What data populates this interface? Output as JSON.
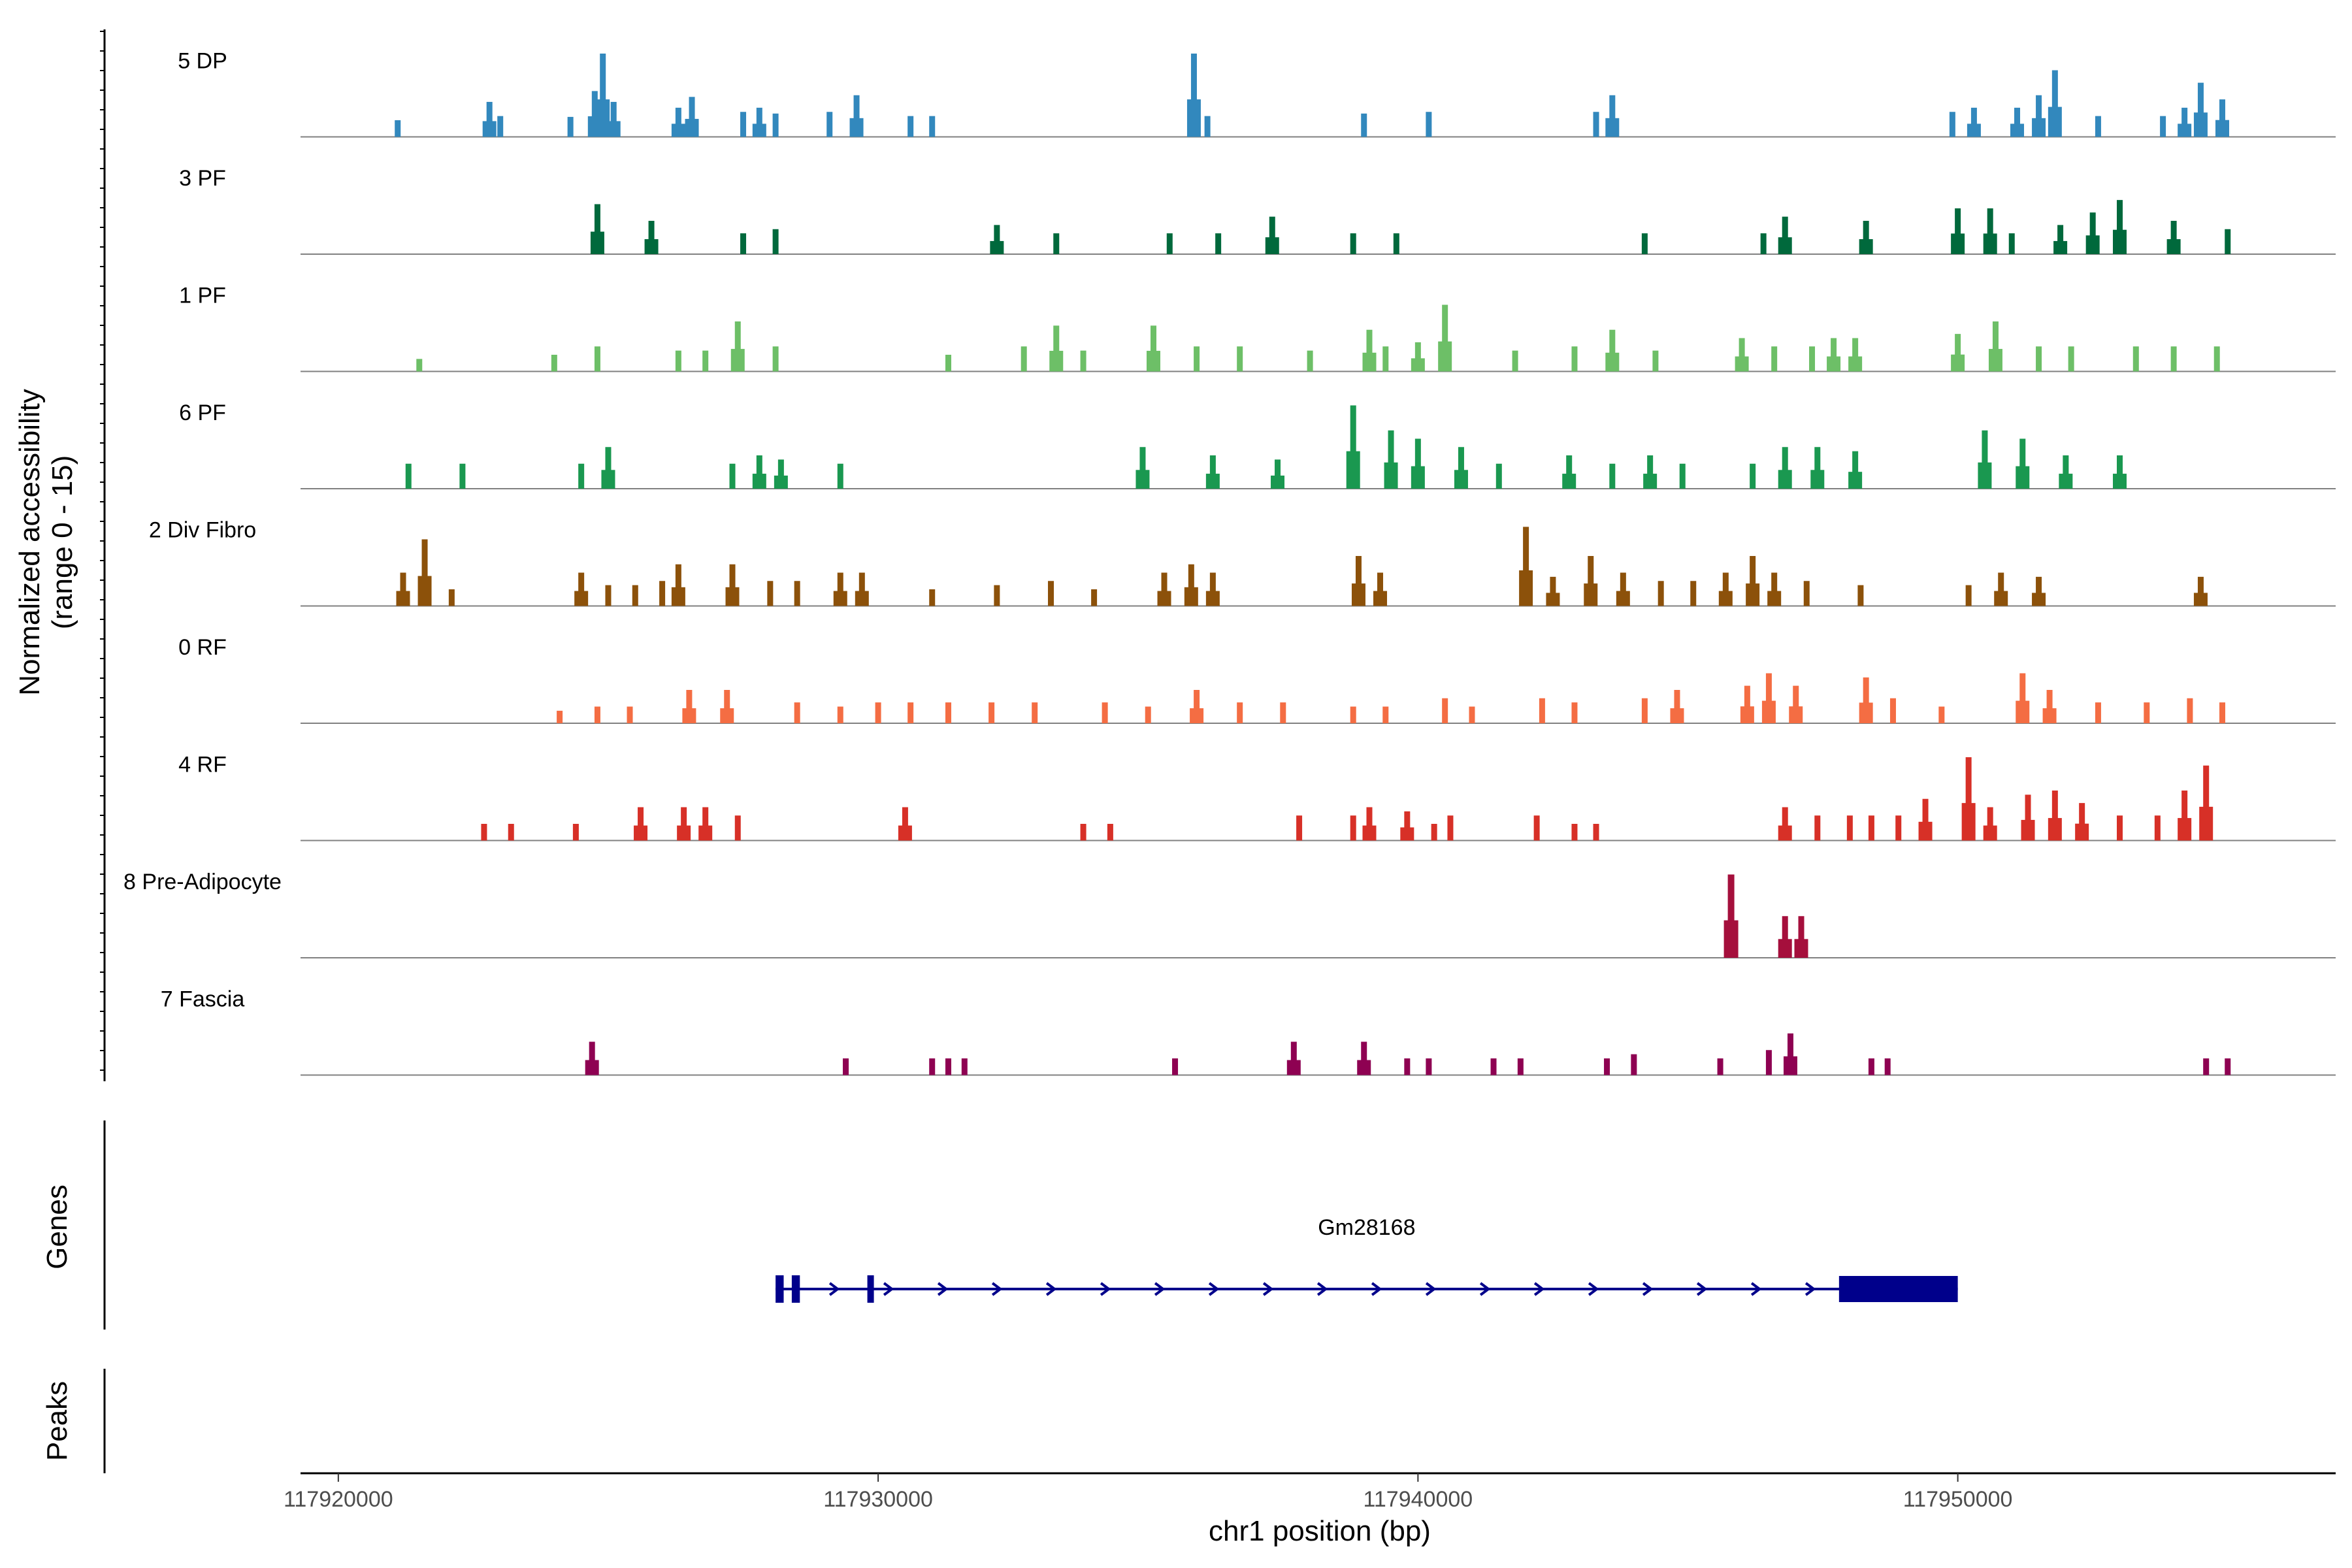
{
  "chart_data": {
    "type": "coverage",
    "ylabel_line1": "Normalized accessibility",
    "ylabel_line2": "(range 0 - 15)",
    "xlabel": "chr1 position (bp)",
    "xlim": [
      117919300,
      117957000
    ],
    "xticks": [
      {
        "value": 117920000,
        "label": "117920000"
      },
      {
        "value": 117930000,
        "label": "117930000"
      },
      {
        "value": 117940000,
        "label": "117940000"
      },
      {
        "value": 117950000,
        "label": "117950000"
      }
    ],
    "tracks": [
      {
        "label": "5 DP",
        "color": "#3288bd",
        "peaks": [
          [
            117921100,
            0.2
          ],
          [
            117922800,
            0.42
          ],
          [
            117923000,
            0.25
          ],
          [
            117924300,
            0.24
          ],
          [
            117924750,
            0.55
          ],
          [
            117924900,
            1.0
          ],
          [
            117925100,
            0.42
          ],
          [
            117926300,
            0.35
          ],
          [
            117926550,
            0.48
          ],
          [
            117927500,
            0.3
          ],
          [
            117927800,
            0.35
          ],
          [
            117928100,
            0.28
          ],
          [
            117929100,
            0.3
          ],
          [
            117929600,
            0.5
          ],
          [
            117930600,
            0.25
          ],
          [
            117931000,
            0.25
          ],
          [
            117935850,
            1.0
          ],
          [
            117936100,
            0.25
          ],
          [
            117939000,
            0.28
          ],
          [
            117940200,
            0.3
          ],
          [
            117943300,
            0.3
          ],
          [
            117943600,
            0.5
          ],
          [
            117949900,
            0.3
          ],
          [
            117950300,
            0.35
          ],
          [
            117951100,
            0.35
          ],
          [
            117951500,
            0.5
          ],
          [
            117951800,
            0.8
          ],
          [
            117952600,
            0.25
          ],
          [
            117953800,
            0.25
          ],
          [
            117954200,
            0.35
          ],
          [
            117954500,
            0.65
          ],
          [
            117954900,
            0.45
          ]
        ]
      },
      {
        "label": "3 PF",
        "color": "#00693c",
        "peaks": [
          [
            117924800,
            0.6
          ],
          [
            117925800,
            0.4
          ],
          [
            117927500,
            0.25
          ],
          [
            117928100,
            0.3
          ],
          [
            117932200,
            0.35
          ],
          [
            117933300,
            0.25
          ],
          [
            117935400,
            0.25
          ],
          [
            117936300,
            0.25
          ],
          [
            117937300,
            0.45
          ],
          [
            117938800,
            0.25
          ],
          [
            117939600,
            0.25
          ],
          [
            117944200,
            0.25
          ],
          [
            117946400,
            0.25
          ],
          [
            117946800,
            0.45
          ],
          [
            117948300,
            0.4
          ],
          [
            117950000,
            0.55
          ],
          [
            117950600,
            0.55
          ],
          [
            117951000,
            0.25
          ],
          [
            117951900,
            0.35
          ],
          [
            117952500,
            0.5
          ],
          [
            117953000,
            0.65
          ],
          [
            117954000,
            0.4
          ],
          [
            117955000,
            0.3
          ]
        ]
      },
      {
        "label": "1 PF",
        "color": "#6dbf67",
        "peaks": [
          [
            117921500,
            0.15
          ],
          [
            117924000,
            0.2
          ],
          [
            117924800,
            0.3
          ],
          [
            117926300,
            0.25
          ],
          [
            117926800,
            0.25
          ],
          [
            117927400,
            0.6
          ],
          [
            117928100,
            0.3
          ],
          [
            117931300,
            0.2
          ],
          [
            117932700,
            0.3
          ],
          [
            117933300,
            0.55
          ],
          [
            117933800,
            0.25
          ],
          [
            117935100,
            0.55
          ],
          [
            117935900,
            0.3
          ],
          [
            117936700,
            0.3
          ],
          [
            117938000,
            0.25
          ],
          [
            117939100,
            0.5
          ],
          [
            117939400,
            0.3
          ],
          [
            117940000,
            0.35
          ],
          [
            117940500,
            0.8
          ],
          [
            117941800,
            0.25
          ],
          [
            117942900,
            0.3
          ],
          [
            117943600,
            0.5
          ],
          [
            117944400,
            0.25
          ],
          [
            117946000,
            0.4
          ],
          [
            117946600,
            0.3
          ],
          [
            117947300,
            0.3
          ],
          [
            117947700,
            0.4
          ],
          [
            117948100,
            0.4
          ],
          [
            117950000,
            0.45
          ],
          [
            117950700,
            0.6
          ],
          [
            117951500,
            0.3
          ],
          [
            117952100,
            0.3
          ],
          [
            117953300,
            0.3
          ],
          [
            117954000,
            0.3
          ],
          [
            117954800,
            0.3
          ]
        ]
      },
      {
        "label": "6 PF",
        "color": "#1a9850",
        "peaks": [
          [
            117921300,
            0.3
          ],
          [
            117922300,
            0.3
          ],
          [
            117924500,
            0.3
          ],
          [
            117925000,
            0.5
          ],
          [
            117927300,
            0.3
          ],
          [
            117927800,
            0.4
          ],
          [
            117928200,
            0.35
          ],
          [
            117929300,
            0.3
          ],
          [
            117934900,
            0.5
          ],
          [
            117936200,
            0.4
          ],
          [
            117937400,
            0.35
          ],
          [
            117938800,
            1.0
          ],
          [
            117939500,
            0.7
          ],
          [
            117940000,
            0.6
          ],
          [
            117940800,
            0.5
          ],
          [
            117941500,
            0.3
          ],
          [
            117942800,
            0.4
          ],
          [
            117943600,
            0.3
          ],
          [
            117944300,
            0.4
          ],
          [
            117944900,
            0.3
          ],
          [
            117946200,
            0.3
          ],
          [
            117946800,
            0.5
          ],
          [
            117947400,
            0.5
          ],
          [
            117948100,
            0.45
          ],
          [
            117950500,
            0.7
          ],
          [
            117951200,
            0.6
          ],
          [
            117952000,
            0.4
          ],
          [
            117953000,
            0.4
          ]
        ]
      },
      {
        "label": "2 Div Fibro",
        "color": "#8c510a",
        "peaks": [
          [
            117921200,
            0.4
          ],
          [
            117921600,
            0.8
          ],
          [
            117922100,
            0.2
          ],
          [
            117924500,
            0.4
          ],
          [
            117925000,
            0.25
          ],
          [
            117925500,
            0.25
          ],
          [
            117926000,
            0.3
          ],
          [
            117926300,
            0.5
          ],
          [
            117927300,
            0.5
          ],
          [
            117928000,
            0.3
          ],
          [
            117928500,
            0.3
          ],
          [
            117929300,
            0.4
          ],
          [
            117929700,
            0.4
          ],
          [
            117931000,
            0.2
          ],
          [
            117932200,
            0.25
          ],
          [
            117933200,
            0.3
          ],
          [
            117934000,
            0.2
          ],
          [
            117935300,
            0.4
          ],
          [
            117935800,
            0.5
          ],
          [
            117936200,
            0.4
          ],
          [
            117938900,
            0.6
          ],
          [
            117939300,
            0.4
          ],
          [
            117942000,
            0.95
          ],
          [
            117942500,
            0.35
          ],
          [
            117943200,
            0.6
          ],
          [
            117943800,
            0.4
          ],
          [
            117944500,
            0.3
          ],
          [
            117945100,
            0.3
          ],
          [
            117945700,
            0.4
          ],
          [
            117946200,
            0.6
          ],
          [
            117946600,
            0.4
          ],
          [
            117947200,
            0.3
          ],
          [
            117948200,
            0.25
          ],
          [
            117950200,
            0.25
          ],
          [
            117950800,
            0.4
          ],
          [
            117951500,
            0.35
          ],
          [
            117954500,
            0.35
          ]
        ]
      },
      {
        "label": "0 RF",
        "color": "#f46d43",
        "peaks": [
          [
            117924100,
            0.15
          ],
          [
            117924800,
            0.2
          ],
          [
            117925400,
            0.2
          ],
          [
            117926500,
            0.4
          ],
          [
            117927200,
            0.4
          ],
          [
            117928500,
            0.25
          ],
          [
            117929300,
            0.2
          ],
          [
            117930000,
            0.25
          ],
          [
            117930600,
            0.25
          ],
          [
            117931300,
            0.25
          ],
          [
            117932100,
            0.25
          ],
          [
            117932900,
            0.25
          ],
          [
            117934200,
            0.25
          ],
          [
            117935000,
            0.2
          ],
          [
            117935900,
            0.4
          ],
          [
            117936700,
            0.25
          ],
          [
            117937500,
            0.25
          ],
          [
            117938800,
            0.2
          ],
          [
            117939400,
            0.2
          ],
          [
            117940500,
            0.3
          ],
          [
            117941000,
            0.2
          ],
          [
            117942300,
            0.3
          ],
          [
            117942900,
            0.25
          ],
          [
            117944200,
            0.3
          ],
          [
            117944800,
            0.4
          ],
          [
            117946100,
            0.45
          ],
          [
            117946500,
            0.6
          ],
          [
            117947000,
            0.45
          ],
          [
            117948300,
            0.55
          ],
          [
            117948800,
            0.3
          ],
          [
            117949700,
            0.2
          ],
          [
            117951200,
            0.6
          ],
          [
            117951700,
            0.4
          ],
          [
            117952600,
            0.25
          ],
          [
            117953500,
            0.25
          ],
          [
            117954300,
            0.3
          ],
          [
            117954900,
            0.25
          ]
        ]
      },
      {
        "label": "4 RF",
        "color": "#d73027",
        "peaks": [
          [
            117922700,
            0.2
          ],
          [
            117923200,
            0.2
          ],
          [
            117924400,
            0.2
          ],
          [
            117925600,
            0.4
          ],
          [
            117926400,
            0.4
          ],
          [
            117926800,
            0.4
          ],
          [
            117927400,
            0.3
          ],
          [
            117930500,
            0.4
          ],
          [
            117933800,
            0.2
          ],
          [
            117934300,
            0.2
          ],
          [
            117937800,
            0.3
          ],
          [
            117938800,
            0.3
          ],
          [
            117939100,
            0.4
          ],
          [
            117939800,
            0.35
          ],
          [
            117940300,
            0.2
          ],
          [
            117940600,
            0.3
          ],
          [
            117942200,
            0.3
          ],
          [
            117942900,
            0.2
          ],
          [
            117943300,
            0.2
          ],
          [
            117946800,
            0.4
          ],
          [
            117947400,
            0.3
          ],
          [
            117948000,
            0.3
          ],
          [
            117948400,
            0.3
          ],
          [
            117948900,
            0.3
          ],
          [
            117949400,
            0.5
          ],
          [
            117950200,
            1.0
          ],
          [
            117950600,
            0.4
          ],
          [
            117951300,
            0.55
          ],
          [
            117951800,
            0.6
          ],
          [
            117952300,
            0.45
          ],
          [
            117953000,
            0.3
          ],
          [
            117953700,
            0.3
          ],
          [
            117954200,
            0.6
          ],
          [
            117954600,
            0.9
          ]
        ]
      },
      {
        "label": "8 Pre-Adipocyte",
        "color": "#a50f3c",
        "peaks": [
          [
            117945800,
            1.0
          ],
          [
            117946800,
            0.5
          ],
          [
            117947100,
            0.5
          ]
        ]
      },
      {
        "label": "7 Fascia",
        "color": "#8e0152",
        "peaks": [
          [
            117924700,
            0.4
          ],
          [
            117929400,
            0.2
          ],
          [
            117931000,
            0.2
          ],
          [
            117931300,
            0.2
          ],
          [
            117931600,
            0.2
          ],
          [
            117935500,
            0.2
          ],
          [
            117937700,
            0.4
          ],
          [
            117939000,
            0.4
          ],
          [
            117939800,
            0.2
          ],
          [
            117940200,
            0.2
          ],
          [
            117941400,
            0.2
          ],
          [
            117941900,
            0.2
          ],
          [
            117943500,
            0.2
          ],
          [
            117944000,
            0.25
          ],
          [
            117945600,
            0.2
          ],
          [
            117946500,
            0.3
          ],
          [
            117946900,
            0.5
          ],
          [
            117948400,
            0.2
          ],
          [
            117948700,
            0.2
          ],
          [
            117954600,
            0.2
          ],
          [
            117955000,
            0.2
          ]
        ]
      }
    ],
    "genes_label": "Genes",
    "peaks_label": "Peaks",
    "gene": {
      "name": "Gm28168",
      "strand": "+",
      "start": 117928100,
      "end": 117950000,
      "color": "#00008b",
      "exons": [
        [
          117928100,
          117928250
        ],
        [
          117928400,
          117928550
        ],
        [
          117929800,
          117929900
        ],
        [
          117947800,
          117950000
        ]
      ]
    }
  }
}
